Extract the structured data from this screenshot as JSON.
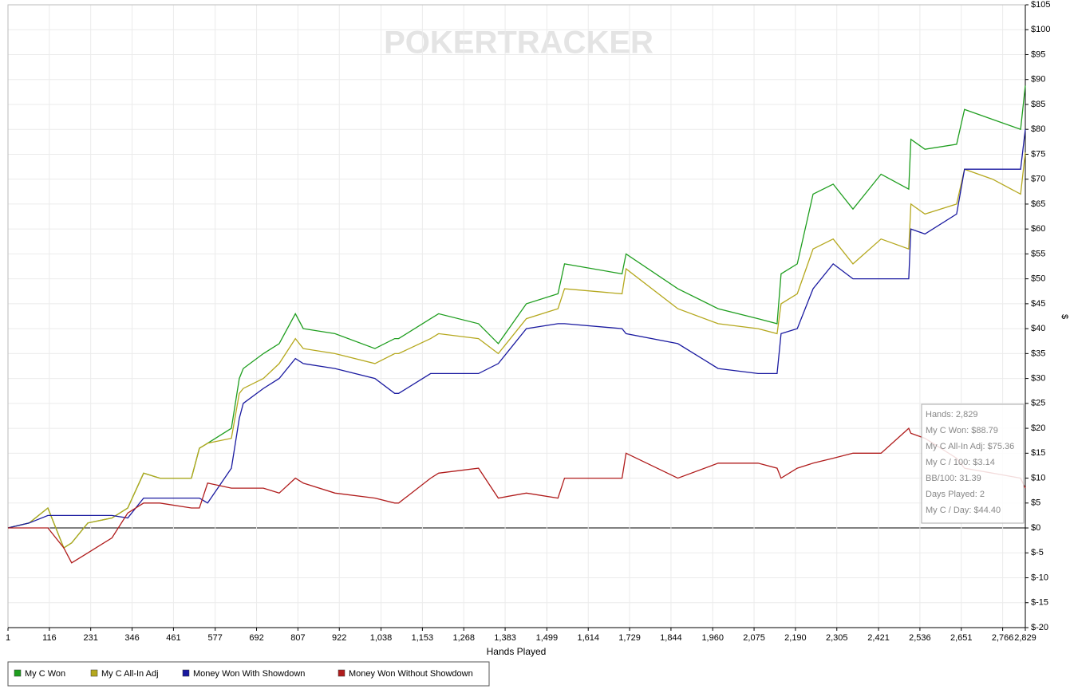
{
  "chart_data": {
    "type": "line",
    "watermark": "POKERTRACKER",
    "xlabel": "Hands Played",
    "ylabel": "$",
    "grid": true,
    "legend": "bottom-left",
    "xlim": [
      1,
      2829
    ],
    "ylim": [
      -20,
      105
    ],
    "xticks": [
      1,
      116,
      231,
      346,
      461,
      577,
      692,
      807,
      922,
      {
        "value": 1038,
        "label": "1,038"
      },
      {
        "value": 1153,
        "label": "1,153"
      },
      {
        "value": 1268,
        "label": "1,268"
      },
      {
        "value": 1383,
        "label": "1,383"
      },
      {
        "value": 1499,
        "label": "1,499"
      },
      {
        "value": 1614,
        "label": "1,614"
      },
      {
        "value": 1729,
        "label": "1,729"
      },
      {
        "value": 1844,
        "label": "1,844"
      },
      {
        "value": 1960,
        "label": "1,960"
      },
      {
        "value": 2075,
        "label": "2,075"
      },
      {
        "value": 2190,
        "label": "2,190"
      },
      {
        "value": 2305,
        "label": "2,305"
      },
      {
        "value": 2421,
        "label": "2,421"
      },
      {
        "value": 2536,
        "label": "2,536"
      },
      {
        "value": 2651,
        "label": "2,651"
      },
      {
        "value": 2766,
        "label": "2,766"
      },
      {
        "value": 2829,
        "label": "2,829"
      }
    ],
    "yticks": [
      {
        "value": 105,
        "label": "$105"
      },
      {
        "value": 100,
        "label": "$100"
      },
      {
        "value": 95,
        "label": "$95"
      },
      {
        "value": 90,
        "label": "$90"
      },
      {
        "value": 85,
        "label": "$85"
      },
      {
        "value": 80,
        "label": "$80"
      },
      {
        "value": 75,
        "label": "$75"
      },
      {
        "value": 70,
        "label": "$70"
      },
      {
        "value": 65,
        "label": "$65"
      },
      {
        "value": 60,
        "label": "$60"
      },
      {
        "value": 55,
        "label": "$55"
      },
      {
        "value": 50,
        "label": "$50"
      },
      {
        "value": 45,
        "label": "$45"
      },
      {
        "value": 40,
        "label": "$40"
      },
      {
        "value": 35,
        "label": "$35"
      },
      {
        "value": 30,
        "label": "$30"
      },
      {
        "value": 25,
        "label": "$25"
      },
      {
        "value": 20,
        "label": "$20"
      },
      {
        "value": 15,
        "label": "$15"
      },
      {
        "value": 10,
        "label": "$10"
      },
      {
        "value": 5,
        "label": "$5"
      },
      {
        "value": 0,
        "label": "$0"
      },
      {
        "value": -5,
        "label": "$-5"
      },
      {
        "value": -10,
        "label": "$-10"
      },
      {
        "value": -15,
        "label": "$-15"
      },
      {
        "value": -20,
        "label": "$-20"
      }
    ],
    "x": [
      1,
      60,
      112,
      156,
      178,
      223,
      290,
      334,
      378,
      423,
      511,
      533,
      556,
      622,
      644,
      655,
      711,
      755,
      800,
      822,
      910,
      1021,
      1076,
      1087,
      1176,
      1198,
      1309,
      1364,
      1442,
      1530,
      1548,
      1708,
      1719,
      1863,
      1975,
      2086,
      2139,
      2150,
      2195,
      2239,
      2295,
      2350,
      2428,
      2505,
      2511,
      2550,
      2638,
      2660,
      2738,
      2816,
      2829
    ],
    "series": [
      {
        "name": "My C Won",
        "color": "#1f9e1f",
        "values": [
          0,
          1,
          4,
          -4,
          -3,
          1,
          2,
          4,
          11,
          10,
          10,
          16,
          17,
          20,
          30,
          32,
          35,
          37,
          43,
          40,
          39,
          36,
          38,
          38,
          42,
          43,
          41,
          37,
          45,
          47,
          53,
          51,
          55,
          48,
          44,
          42,
          41,
          51,
          53,
          67,
          69,
          64,
          71,
          68,
          78,
          76,
          77,
          84,
          82,
          80,
          88.79
        ]
      },
      {
        "name": "My C All-In Adj",
        "color": "#b5a81e",
        "values": [
          0,
          1,
          4,
          -4,
          -3,
          1,
          2,
          4,
          11,
          10,
          10,
          16,
          17,
          18,
          27,
          28,
          30,
          33,
          38,
          36,
          35,
          33,
          35,
          35,
          38,
          39,
          38,
          35,
          42,
          44,
          48,
          47,
          52,
          44,
          41,
          40,
          39,
          45,
          47,
          56,
          58,
          53,
          58,
          56,
          65,
          63,
          65,
          72,
          70,
          67,
          75.36
        ]
      },
      {
        "name": "Money Won With Showdown",
        "color": "#1a1aa0",
        "values": [
          0,
          1,
          2.5,
          2.5,
          2.5,
          2.5,
          2.5,
          2,
          6,
          6,
          6,
          6,
          5,
          12,
          22,
          25,
          28,
          30,
          34,
          33,
          32,
          30,
          27,
          27,
          31,
          31,
          31,
          33,
          40,
          41,
          41,
          40,
          39,
          37,
          32,
          31,
          31,
          39,
          40,
          48,
          53,
          50,
          50,
          50,
          60,
          59,
          63,
          72,
          72,
          72,
          80
        ]
      },
      {
        "name": "Money Won Without Showdown",
        "color": "#b01c1c",
        "values": [
          0,
          0,
          0,
          -4,
          -7,
          -5,
          -2,
          3,
          5,
          5,
          4,
          4,
          9,
          8,
          8,
          8,
          8,
          7,
          10,
          9,
          7,
          6,
          5,
          5,
          10,
          11,
          12,
          6,
          7,
          6,
          10,
          10,
          15,
          10,
          13,
          13,
          12,
          10,
          12,
          13,
          14,
          15,
          15,
          20,
          19,
          18,
          14,
          12,
          11,
          10,
          8
        ]
      }
    ],
    "tooltip": [
      "Hands: 2,829",
      "My C Won: $88.79",
      "My C All-In Adj: $75.36",
      "My C / 100: $3.14",
      "BB/100: 31.39",
      "Days Played: 2",
      "My C / Day: $44.40"
    ]
  }
}
